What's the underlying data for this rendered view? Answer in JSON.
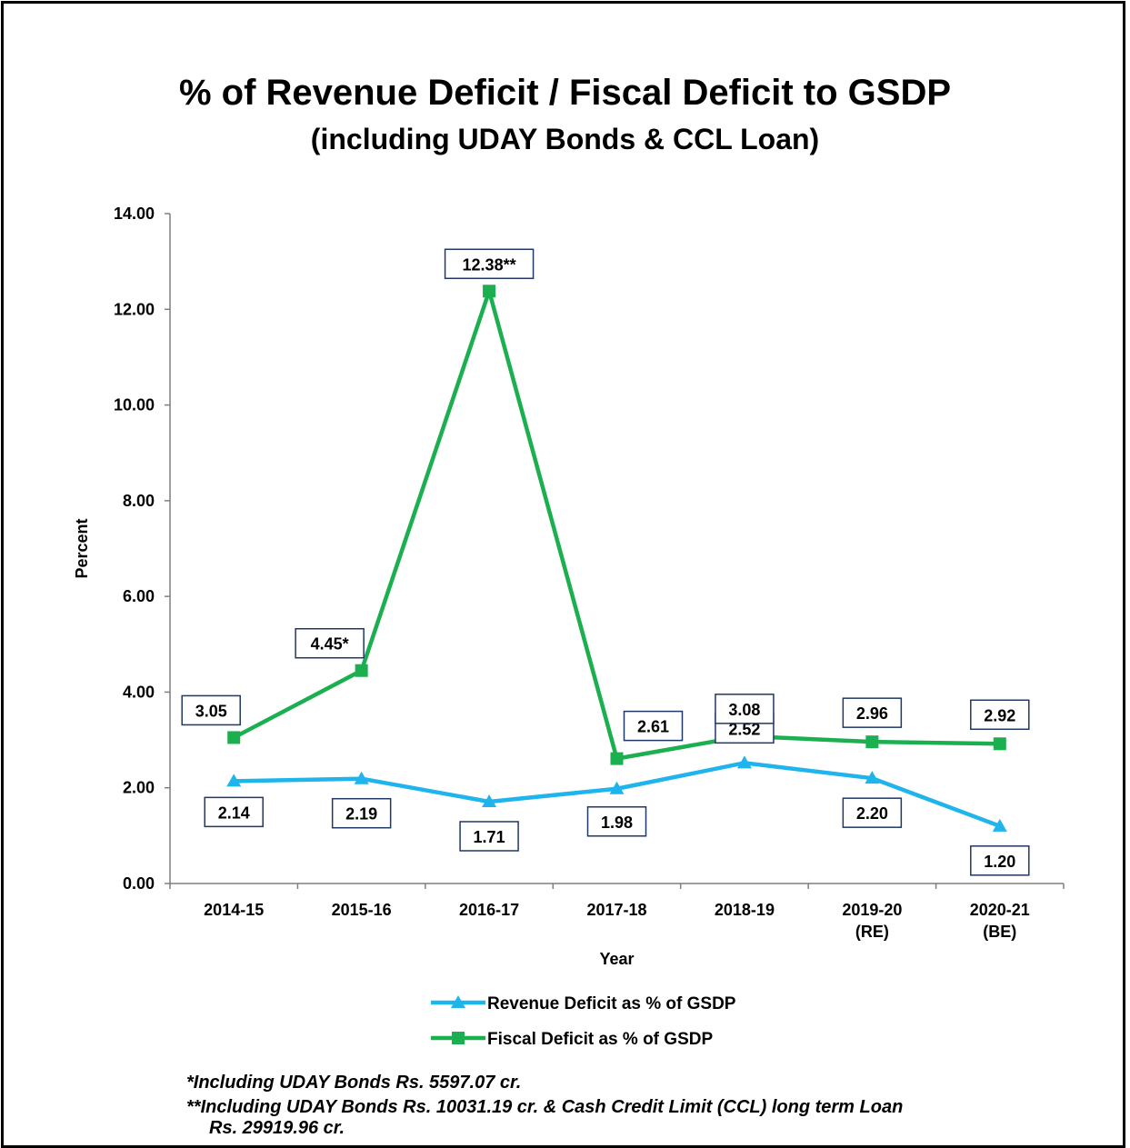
{
  "chart_data": {
    "type": "line",
    "title": "% of Revenue Deficit / Fiscal Deficit to GSDP",
    "subtitle": "(including UDAY Bonds & CCL Loan)",
    "xlabel": "Year",
    "ylabel": "Percent",
    "ylim": [
      0,
      14
    ],
    "yticks": [
      "0.00",
      "2.00",
      "4.00",
      "6.00",
      "8.00",
      "10.00",
      "12.00",
      "14.00"
    ],
    "categories": [
      [
        "2014-15"
      ],
      [
        "2015-16"
      ],
      [
        "2016-17"
      ],
      [
        "2017-18"
      ],
      [
        "2018-19"
      ],
      [
        "2019-20",
        "(RE)"
      ],
      [
        "2020-21",
        "(BE)"
      ]
    ],
    "series": [
      {
        "name": "Revenue Deficit as % of GSDP",
        "color": "#1FB4EC",
        "marker": "triangle",
        "values": [
          2.14,
          2.19,
          1.71,
          1.98,
          2.52,
          2.2,
          1.2
        ],
        "labels": [
          "2.14",
          "2.19",
          "1.71",
          "1.98",
          "2.52",
          "2.20",
          "1.20"
        ]
      },
      {
        "name": "Fiscal Deficit as % of GSDP",
        "color": "#1BAF50",
        "marker": "square",
        "values": [
          3.05,
          4.45,
          12.38,
          2.61,
          3.08,
          2.96,
          2.92
        ],
        "labels": [
          "3.05",
          "4.45*",
          "12.38**",
          "2.61",
          "3.08",
          "2.96",
          "2.92"
        ]
      }
    ],
    "grid": false,
    "legend": "bottom"
  },
  "notes": [
    "*Including UDAY Bonds Rs. 5597.07 cr.",
    "**Including UDAY Bonds Rs. 10031.19 cr. & Cash Credit Limit (CCL) long term Loan",
    "Rs. 29919.96 cr."
  ]
}
